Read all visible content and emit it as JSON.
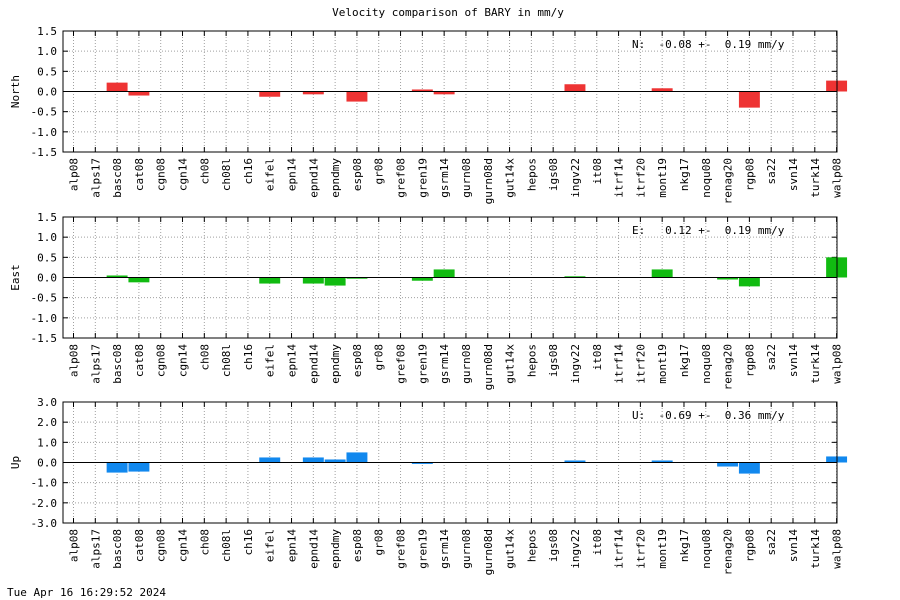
{
  "title": "Velocity comparison of BARY in mm/y",
  "timestamp": "Tue Apr 16 16:29:52 2024",
  "chart_data": {
    "type": "bar",
    "categories": [
      "alp08",
      "alps17",
      "basc08",
      "cat08",
      "cgn08",
      "cgn14",
      "ch08",
      "ch08l",
      "ch16",
      "eifel",
      "epn14",
      "epnd14",
      "epndmy",
      "esp08",
      "gr08",
      "gref08",
      "gren19",
      "gsrm14",
      "gurn08",
      "gurn08d",
      "gut14x",
      "hepos",
      "igs08",
      "ingv22",
      "it08",
      "itrf14",
      "itrf20",
      "mont19",
      "nkg17",
      "noqu08",
      "renag20",
      "rgp08",
      "sa22",
      "svn14",
      "turk14",
      "walp08"
    ],
    "panels": [
      {
        "name": "north",
        "ylabel": "North",
        "summary": "N:  -0.08 +-  0.19 mm/y",
        "color": "#ee3333",
        "ylim": [
          -1.5,
          1.5
        ],
        "yticks": [
          -1.5,
          -1.0,
          -0.5,
          0.0,
          0.5,
          1.0,
          1.5
        ],
        "tick_labels": [
          "-1.5",
          "-1.0",
          "-0.5",
          "0.0",
          "0.5",
          "1.0",
          "1.5"
        ],
        "values": [
          0,
          0,
          0.22,
          -0.1,
          0,
          0,
          0,
          0,
          0,
          -0.13,
          0,
          -0.07,
          0,
          -0.25,
          0,
          0,
          0.05,
          -0.07,
          0,
          0,
          0,
          0,
          0,
          0.18,
          0,
          0,
          0,
          0.08,
          0,
          0,
          0,
          -0.4,
          0,
          0,
          0,
          0.27
        ]
      },
      {
        "name": "east",
        "ylabel": "East",
        "summary": "E:   0.12 +-  0.19 mm/y",
        "color": "#11bb11",
        "ylim": [
          -1.5,
          1.5
        ],
        "yticks": [
          -1.5,
          -1.0,
          -0.5,
          0.0,
          0.5,
          1.0,
          1.5
        ],
        "tick_labels": [
          "-1.5",
          "-1.0",
          "-0.5",
          "0.0",
          "0.5",
          "1.0",
          "1.5"
        ],
        "values": [
          0,
          0,
          0.05,
          -0.12,
          0,
          0,
          0,
          0,
          0,
          -0.15,
          0,
          -0.15,
          -0.2,
          -0.03,
          0,
          0,
          -0.08,
          0.2,
          0,
          0,
          0,
          0,
          0,
          0.03,
          0,
          0,
          0,
          0.2,
          0,
          0,
          -0.05,
          -0.22,
          0,
          0,
          0,
          0.5
        ]
      },
      {
        "name": "up",
        "ylabel": "Up",
        "summary": "U:  -0.69 +-  0.36 mm/y",
        "color": "#1188ee",
        "ylim": [
          -3.0,
          3.0
        ],
        "yticks": [
          -3.0,
          -2.0,
          -1.0,
          0.0,
          1.0,
          2.0,
          3.0
        ],
        "tick_labels": [
          "-3.0",
          "-2.0",
          "-1.0",
          "0.0",
          "1.0",
          "2.0",
          "3.0"
        ],
        "values": [
          0,
          0,
          -0.5,
          -0.45,
          0,
          0,
          0,
          0,
          0,
          0.25,
          0,
          0.25,
          0.15,
          0.5,
          0,
          0,
          -0.07,
          0,
          0,
          0,
          0,
          0,
          0,
          0.1,
          0,
          0,
          0,
          0.1,
          0,
          0,
          -0.2,
          -0.55,
          0,
          0,
          0,
          0.3
        ]
      }
    ]
  }
}
